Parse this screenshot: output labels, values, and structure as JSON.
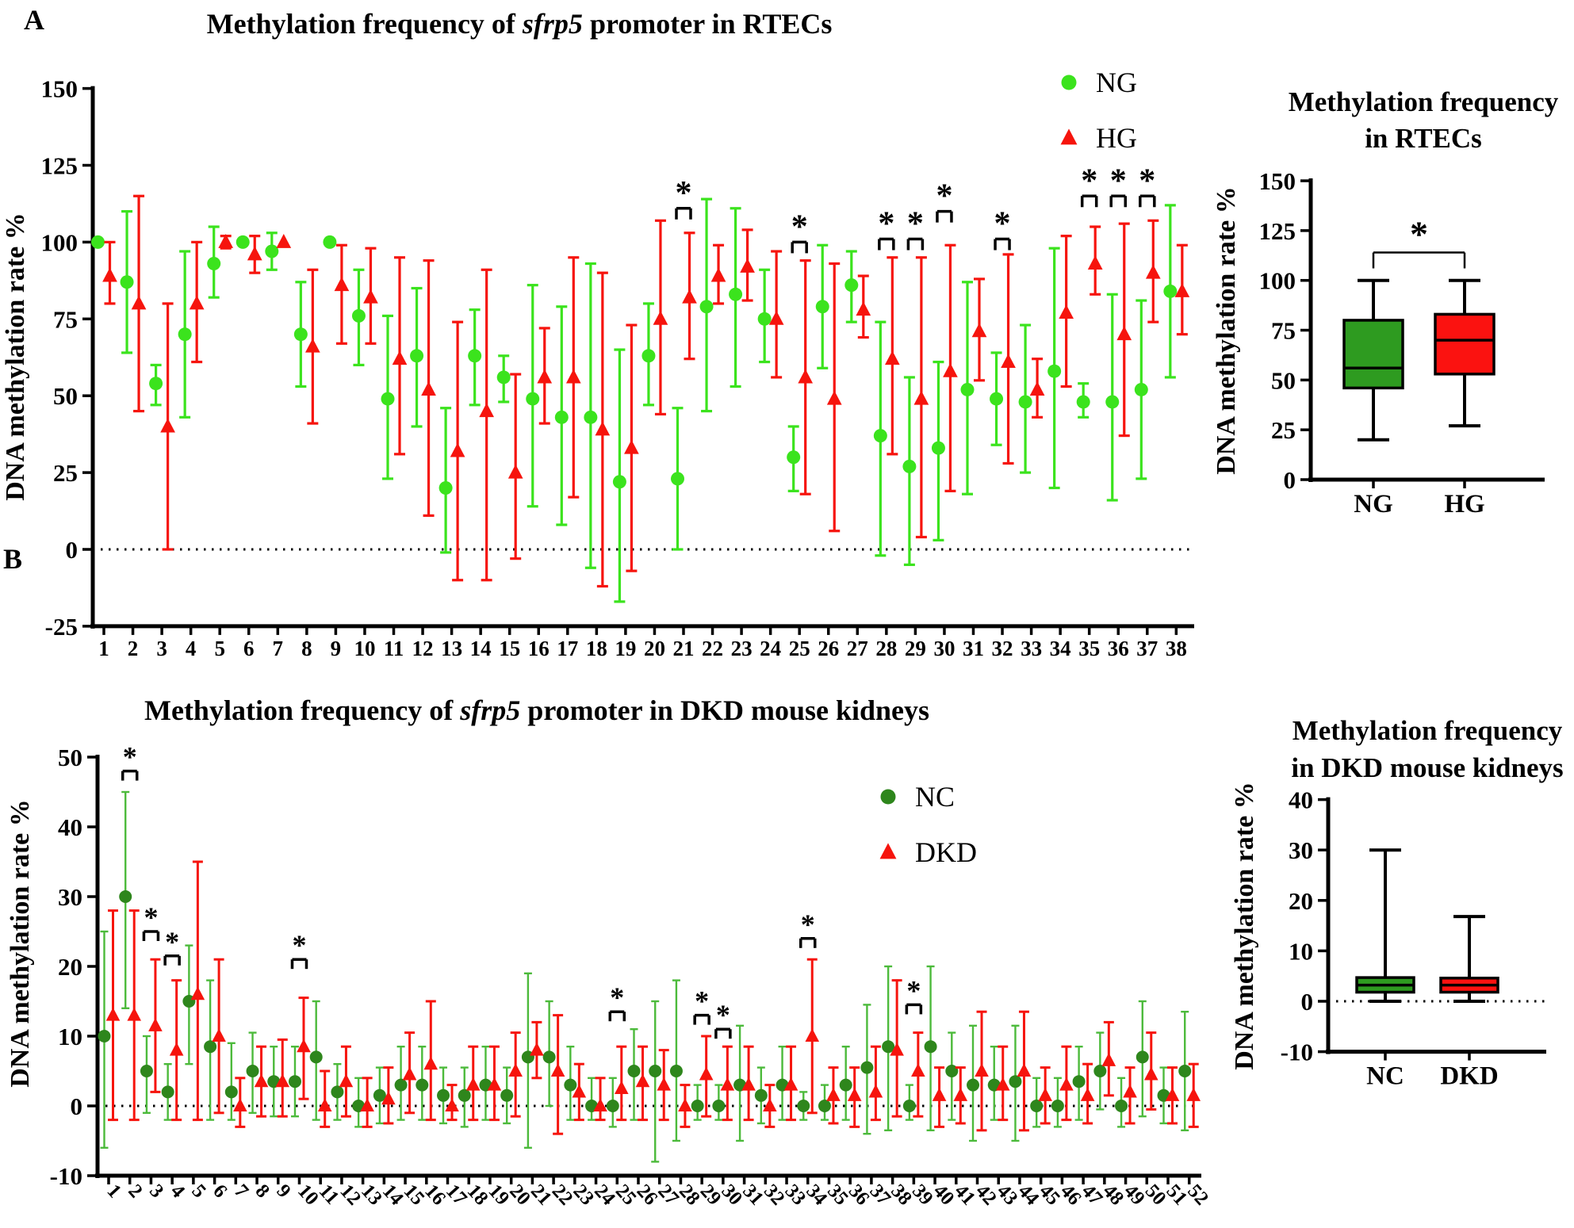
{
  "panels": {
    "a_letter": "A",
    "b_letter": "B"
  },
  "chart_data": [
    {
      "id": "rtec_scatter",
      "type": "scatter",
      "panel": "A",
      "title_parts": [
        "Methylation frequency of ",
        "sfrp5",
        " promoter in RTECs"
      ],
      "ylabel": "DNA methylation rate %",
      "ylim": [
        -25,
        150
      ],
      "yticks": [
        150,
        125,
        100,
        75,
        50,
        25,
        0,
        -25
      ],
      "zero_line_dotted": true,
      "legend_position": "top-right-inside",
      "legend": [
        {
          "label": "NG",
          "marker": "circle-icon",
          "color": "#3BE31D"
        },
        {
          "label": "HG",
          "marker": "triangle-icon",
          "color": "#F6140D"
        }
      ],
      "x": [
        1,
        2,
        3,
        4,
        5,
        6,
        7,
        8,
        9,
        10,
        11,
        12,
        13,
        14,
        15,
        16,
        17,
        18,
        19,
        20,
        21,
        22,
        23,
        24,
        25,
        26,
        27,
        28,
        29,
        30,
        31,
        32,
        33,
        34,
        35,
        36,
        37,
        38
      ],
      "series": [
        {
          "name": "NG",
          "marker": "circle",
          "color": "#3BE31D",
          "values": [
            100,
            87,
            54,
            70,
            93,
            100,
            97,
            70,
            100,
            76,
            49,
            63,
            20,
            63,
            56,
            49,
            43,
            43,
            22,
            63,
            23,
            79,
            83,
            75,
            30,
            79,
            86,
            37,
            27,
            33,
            52,
            49,
            48,
            58,
            48,
            48,
            52,
            84
          ],
          "err_lo": [
            100,
            64,
            47,
            43,
            82,
            100,
            91,
            53,
            100,
            60,
            23,
            40,
            -1,
            47,
            48,
            14,
            8,
            -6,
            -17,
            47,
            0,
            45,
            53,
            61,
            19,
            59,
            74,
            -2,
            -5,
            3,
            18,
            34,
            25,
            20,
            43,
            16,
            23,
            56
          ],
          "err_hi": [
            100,
            110,
            60,
            97,
            105,
            100,
            103,
            87,
            100,
            91,
            76,
            85,
            46,
            78,
            63,
            86,
            79,
            93,
            65,
            80,
            46,
            114,
            111,
            91,
            40,
            99,
            97,
            74,
            56,
            61,
            87,
            64,
            73,
            98,
            54,
            83,
            81,
            112
          ]
        },
        {
          "name": "HG",
          "marker": "triangle",
          "color": "#F6140D",
          "values": [
            89,
            80,
            40,
            80,
            100,
            96,
            100,
            66,
            86,
            82,
            62,
            52,
            32,
            45,
            25,
            56,
            56,
            39,
            33,
            75,
            82,
            89,
            92,
            75,
            56,
            49,
            78,
            62,
            49,
            58,
            71,
            61,
            52,
            77,
            93,
            70,
            90,
            84
          ],
          "err_lo": [
            80,
            45,
            0,
            61,
            98,
            90,
            100,
            41,
            67,
            67,
            31,
            11,
            -10,
            -10,
            -3,
            41,
            17,
            -12,
            -7,
            44,
            62,
            80,
            81,
            56,
            18,
            6,
            69,
            31,
            4,
            19,
            55,
            28,
            43,
            53,
            83,
            37,
            74,
            70
          ],
          "err_hi": [
            100,
            115,
            80,
            100,
            102,
            102,
            100,
            91,
            99,
            98,
            95,
            94,
            74,
            91,
            57,
            72,
            95,
            90,
            73,
            107,
            103,
            99,
            104,
            97,
            94,
            93,
            89,
            95,
            95,
            99,
            88,
            96,
            62,
            102,
            105,
            106,
            107,
            99
          ]
        }
      ],
      "significance": [
        {
          "x": 21,
          "y": 111,
          "label": "*"
        },
        {
          "x": 25,
          "y": 100,
          "label": "*"
        },
        {
          "x": 28,
          "y": 101,
          "label": "*"
        },
        {
          "x": 29,
          "y": 101,
          "label": "*"
        },
        {
          "x": 30,
          "y": 110,
          "label": "*"
        },
        {
          "x": 32,
          "y": 101,
          "label": "*"
        },
        {
          "x": 35,
          "y": 115,
          "label": "*"
        },
        {
          "x": 36,
          "y": 115,
          "label": "*"
        },
        {
          "x": 37,
          "y": 115,
          "label": "*"
        }
      ]
    },
    {
      "id": "rtec_box",
      "type": "box",
      "panel": "A",
      "title_lines": [
        "Methylation frequency",
        "in RTECs"
      ],
      "ylabel": "DNA methylation rate %",
      "ylim": [
        0,
        150
      ],
      "yticks": [
        150,
        125,
        100,
        75,
        50,
        25,
        0
      ],
      "categories": [
        "NG",
        "HG"
      ],
      "boxes": [
        {
          "label": "NG",
          "color": "#2E9B20",
          "whisker_lo": 20,
          "q1": 46,
          "median": 56,
          "q3": 80,
          "whisker_hi": 100
        },
        {
          "label": "HG",
          "color": "#FB1210",
          "whisker_lo": 27,
          "q1": 53,
          "median": 70,
          "q3": 83,
          "whisker_hi": 100
        }
      ],
      "significance": [
        {
          "between": [
            "NG",
            "HG"
          ],
          "y": 114,
          "label": "*"
        }
      ]
    },
    {
      "id": "dkd_scatter",
      "type": "scatter",
      "panel": "B",
      "title_parts": [
        "Methylation frequency of ",
        "sfrp5",
        " promoter in DKD mouse kidneys"
      ],
      "ylabel": "DNA methylation rate %",
      "ylim": [
        -10,
        50
      ],
      "yticks": [
        50,
        40,
        30,
        20,
        10,
        0,
        -10
      ],
      "zero_line_dotted": true,
      "legend_position": "right-inside",
      "legend": [
        {
          "label": "NC",
          "marker": "circle-icon",
          "color": "#2E861C"
        },
        {
          "label": "DKD",
          "marker": "triangle-icon",
          "color": "#F6140D"
        }
      ],
      "x": [
        1,
        2,
        3,
        4,
        5,
        6,
        7,
        8,
        9,
        10,
        11,
        12,
        13,
        14,
        15,
        16,
        17,
        18,
        19,
        20,
        21,
        22,
        23,
        24,
        25,
        26,
        27,
        28,
        29,
        30,
        31,
        32,
        33,
        34,
        35,
        36,
        37,
        38,
        39,
        40,
        41,
        42,
        43,
        44,
        45,
        46,
        47,
        48,
        49,
        50,
        51,
        52
      ],
      "series": [
        {
          "name": "NC",
          "marker": "circle",
          "color": "#2E861C",
          "bar_color": "#4CBA3B",
          "values": [
            10,
            30,
            5,
            2,
            15,
            8.5,
            2,
            5,
            3.5,
            3.5,
            7,
            2,
            0,
            1.5,
            3,
            3,
            1.5,
            1.5,
            3,
            1.5,
            7,
            7,
            3,
            0,
            0,
            5,
            5,
            5,
            0,
            0,
            3,
            1.5,
            3,
            0,
            0,
            3,
            5.5,
            8.5,
            0,
            8.5,
            5,
            3,
            3,
            3.5,
            0,
            0,
            3.5,
            5,
            0,
            7,
            1.5,
            5
          ],
          "err_lo": [
            -6,
            14,
            -1,
            -2,
            6,
            -2,
            -2,
            -1,
            -1.5,
            -1.5,
            -2,
            -2,
            -3,
            -2.5,
            -2,
            -2,
            -2.5,
            -3,
            -2,
            -2.5,
            -6,
            0,
            -2,
            -2,
            -3,
            -2,
            -8,
            -5,
            -2,
            -2,
            -5,
            -2.5,
            -2,
            -2,
            -2,
            -2,
            -4,
            -3.5,
            -2,
            -3.5,
            -2,
            -5,
            -2,
            -5,
            -3,
            -3,
            -2,
            -0.5,
            -3,
            -1.5,
            -2.5,
            -3.5
          ],
          "err_hi": [
            25,
            45,
            10,
            6,
            23,
            18,
            9,
            10.5,
            8.5,
            8.5,
            15,
            6,
            4,
            5.5,
            8.5,
            8.5,
            5.5,
            5.5,
            8.5,
            5.5,
            19,
            15,
            8.5,
            4,
            4,
            11,
            15,
            18,
            3,
            3,
            11.5,
            5.5,
            8.5,
            2,
            3,
            8.5,
            14.5,
            20,
            3,
            20,
            10.5,
            11.5,
            8.5,
            11.5,
            4,
            4,
            8.5,
            10.5,
            4,
            15,
            5.5,
            13.5
          ]
        },
        {
          "name": "DKD",
          "marker": "triangle",
          "color": "#F6140D",
          "bar_color": "#F6140D",
          "values": [
            13,
            13,
            11.5,
            8,
            16,
            10,
            0,
            3.5,
            3.5,
            8.5,
            0,
            3.5,
            0,
            1,
            4.5,
            6,
            0,
            3,
            3,
            5,
            8,
            5,
            2,
            0,
            2.5,
            3.5,
            3,
            0,
            4.5,
            3,
            3,
            0,
            3,
            10,
            1.5,
            1.5,
            2,
            8,
            5,
            1.5,
            1.5,
            5,
            3,
            5,
            1.5,
            3,
            1.5,
            6.5,
            2,
            4.5,
            1.5,
            1.5
          ],
          "err_lo": [
            -2,
            -2,
            2,
            -2,
            -2,
            -1,
            -3,
            -1.5,
            -1.5,
            1,
            -3,
            -1.5,
            -3,
            -2.5,
            -1,
            -2,
            -2,
            -2,
            -2,
            -1.5,
            4,
            -4,
            -2,
            -2,
            -2,
            -2,
            -2,
            -3,
            -1.5,
            -2,
            -2,
            -3,
            -2,
            -1,
            -2.5,
            -3,
            -2,
            -1.5,
            -1.5,
            -3,
            -2.5,
            -3.5,
            -2,
            -3.5,
            -2.5,
            -2,
            -2.5,
            1.5,
            -2.5,
            -0.5,
            -2.5,
            -3
          ],
          "err_hi": [
            28,
            28,
            21,
            18,
            35,
            21,
            4,
            8.5,
            9.5,
            15.5,
            5,
            8.5,
            4,
            5.5,
            10.5,
            15,
            3,
            8.5,
            8.5,
            10.5,
            12,
            13,
            6,
            4,
            8.5,
            8.5,
            8,
            3,
            10,
            8.5,
            8.5,
            3,
            8.5,
            21,
            5.5,
            5.5,
            8.5,
            18,
            10.5,
            5.5,
            5.5,
            13.5,
            8.5,
            13.5,
            5.5,
            8.5,
            6,
            12,
            5.5,
            10.5,
            5.5,
            6
          ]
        }
      ],
      "significance": [
        {
          "x": 2,
          "y": 48,
          "label": "*"
        },
        {
          "x": 3,
          "y": 25,
          "label": "*"
        },
        {
          "x": 4,
          "y": 21.5,
          "label": "*"
        },
        {
          "x": 10,
          "y": 21,
          "label": "*"
        },
        {
          "x": 25,
          "y": 13.5,
          "label": "*"
        },
        {
          "x": 29,
          "y": 13,
          "label": "*"
        },
        {
          "x": 30,
          "y": 11,
          "label": "*"
        },
        {
          "x": 34,
          "y": 24,
          "label": "*"
        },
        {
          "x": 39,
          "y": 14.5,
          "label": "*"
        }
      ]
    },
    {
      "id": "dkd_box",
      "type": "box",
      "panel": "B",
      "title_lines": [
        "Methylation frequency",
        "in DKD mouse kidneys"
      ],
      "ylabel": "DNA methylation rate %",
      "ylim": [
        -10,
        40
      ],
      "yticks": [
        40,
        30,
        20,
        10,
        0,
        -10
      ],
      "zero_line_dotted": true,
      "categories": [
        "NC",
        "DKD"
      ],
      "boxes": [
        {
          "label": "NC",
          "color": "#2E9B20",
          "whisker_lo": 0,
          "q1": 1.8,
          "median": 3.2,
          "q3": 4.7,
          "whisker_hi": 30
        },
        {
          "label": "DKD",
          "color": "#FB1210",
          "whisker_lo": 0,
          "q1": 1.8,
          "median": 3.2,
          "q3": 4.6,
          "whisker_hi": 16.8
        }
      ],
      "significance": []
    }
  ]
}
